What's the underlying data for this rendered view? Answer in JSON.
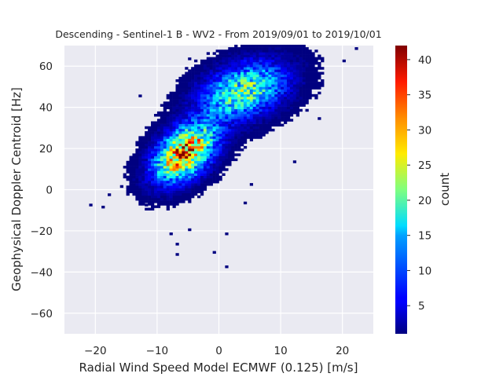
{
  "chart_data": {
    "type": "heatmap",
    "title": "Descending - Sentinel-1 B - WV2 - From 2019/09/01 to 2019/10/01",
    "xlabel": "Radial Wind Speed Model ECMWF (0.125) [m/s]",
    "ylabel": "Geophysical Doppler Centroid [Hz]",
    "xlim": [
      -25,
      25
    ],
    "ylim": [
      -70,
      70
    ],
    "xticks": [
      -20,
      -10,
      0,
      10,
      20
    ],
    "yticks": [
      -60,
      -40,
      -20,
      0,
      20,
      40,
      60
    ],
    "grid": true,
    "background": "#eaeaf2",
    "colormap": "jet",
    "colorbar": {
      "label": "count",
      "min": 1,
      "max": 42,
      "ticks": [
        5,
        10,
        15,
        20,
        25,
        30,
        35,
        40
      ]
    },
    "clusters": [
      {
        "x": -5.5,
        "y": 18,
        "sx": 3.2,
        "sy": 9,
        "rho": 0.45,
        "peak": 34
      },
      {
        "x": 4,
        "y": 48,
        "sx": 4.5,
        "sy": 9,
        "rho": 0.35,
        "peak": 20
      }
    ],
    "outlier_points": [
      {
        "x": -21,
        "y": -8
      },
      {
        "x": -19,
        "y": -9
      },
      {
        "x": -18,
        "y": -3
      },
      {
        "x": -16,
        "y": 1
      },
      {
        "x": -15,
        "y": 5
      },
      {
        "x": -12,
        "y": -8
      },
      {
        "x": -8,
        "y": -22
      },
      {
        "x": -7,
        "y": -27
      },
      {
        "x": -7,
        "y": -32
      },
      {
        "x": -5,
        "y": -20
      },
      {
        "x": -1,
        "y": -31
      },
      {
        "x": 1,
        "y": -22
      },
      {
        "x": 1,
        "y": -38
      },
      {
        "x": 4,
        "y": -7
      },
      {
        "x": 5,
        "y": 2
      },
      {
        "x": 12,
        "y": 13
      },
      {
        "x": 16,
        "y": 34
      },
      {
        "x": 20,
        "y": 62
      },
      {
        "x": 22,
        "y": 68
      },
      {
        "x": -13,
        "y": 45
      },
      {
        "x": -5,
        "y": 63
      },
      {
        "x": 10,
        "y": 36
      },
      {
        "x": 14,
        "y": 38
      }
    ]
  }
}
